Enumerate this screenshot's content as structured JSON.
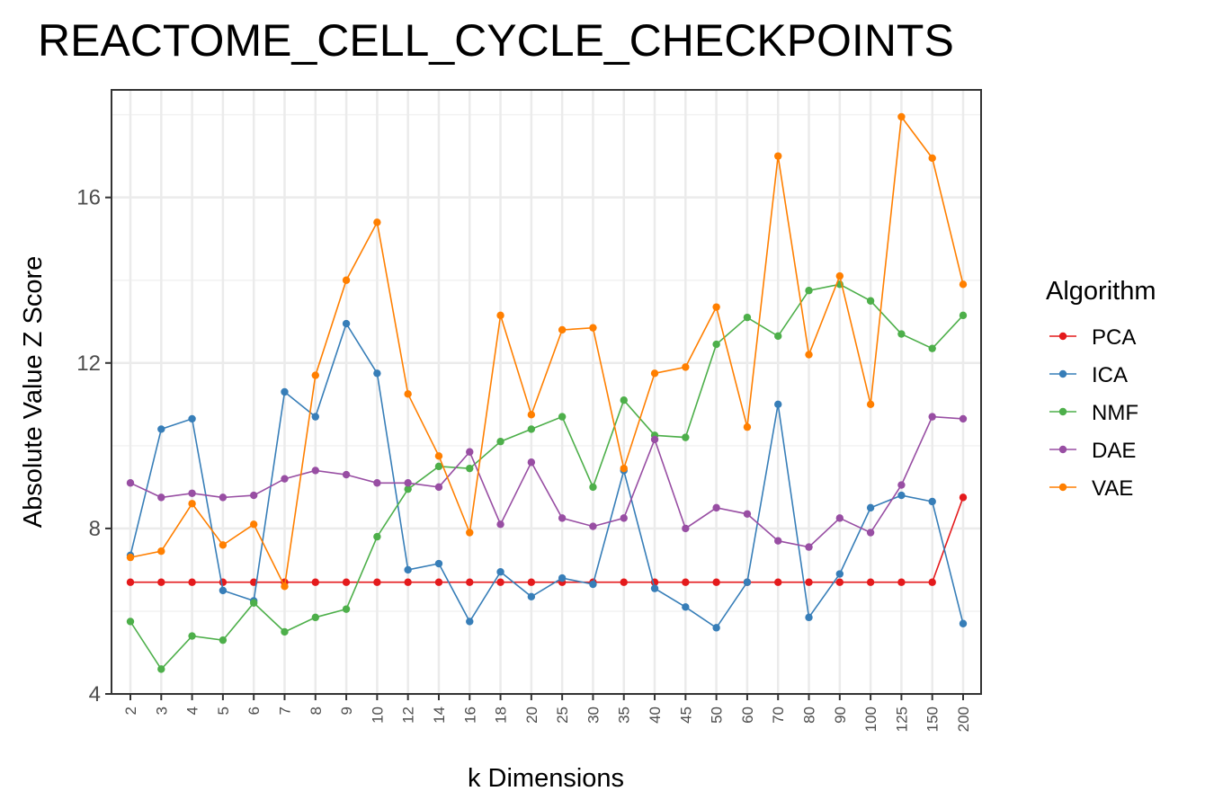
{
  "chart_data": {
    "type": "line",
    "title": "REACTOME_CELL_CYCLE_CHECKPOINTS",
    "xlabel": "k Dimensions",
    "ylabel": "Absolute Value Z Score",
    "categories": [
      "2",
      "3",
      "4",
      "5",
      "6",
      "7",
      "8",
      "9",
      "10",
      "12",
      "14",
      "16",
      "18",
      "20",
      "25",
      "30",
      "35",
      "40",
      "45",
      "50",
      "60",
      "70",
      "80",
      "90",
      "100",
      "125",
      "150",
      "200"
    ],
    "ylim": [
      4,
      18.6
    ],
    "yticks": [
      4,
      8,
      12,
      16
    ],
    "ytick_labels": [
      "4",
      "8",
      "12",
      "16"
    ],
    "grid": true,
    "legend": {
      "title": "Algorithm",
      "position": "right"
    },
    "series": [
      {
        "name": "PCA",
        "color": "#E41A1C",
        "values": [
          6.7,
          6.7,
          6.7,
          6.7,
          6.7,
          6.7,
          6.7,
          6.7,
          6.7,
          6.7,
          6.7,
          6.7,
          6.7,
          6.7,
          6.7,
          6.7,
          6.7,
          6.7,
          6.7,
          6.7,
          6.7,
          6.7,
          6.7,
          6.7,
          6.7,
          6.7,
          6.7,
          8.75
        ]
      },
      {
        "name": "ICA",
        "color": "#377EB8",
        "values": [
          7.35,
          10.4,
          10.65,
          6.5,
          6.25,
          11.3,
          10.7,
          12.95,
          11.75,
          7.0,
          7.15,
          5.75,
          6.95,
          6.35,
          6.8,
          6.65,
          9.4,
          6.55,
          6.1,
          5.6,
          6.7,
          11.0,
          5.85,
          6.9,
          8.5,
          8.8,
          8.65,
          5.7
        ]
      },
      {
        "name": "NMF",
        "color": "#4DAF4A",
        "values": [
          5.75,
          4.6,
          5.4,
          5.3,
          6.2,
          5.5,
          5.85,
          6.05,
          7.8,
          8.95,
          9.5,
          9.45,
          10.1,
          10.4,
          10.7,
          9.0,
          11.1,
          10.25,
          10.2,
          12.45,
          13.1,
          12.65,
          13.75,
          13.9,
          13.5,
          12.7,
          12.35,
          13.15
        ]
      },
      {
        "name": "DAE",
        "color": "#984EA3",
        "values": [
          9.1,
          8.75,
          8.85,
          8.75,
          8.8,
          9.2,
          9.4,
          9.3,
          9.1,
          9.1,
          9.0,
          9.85,
          8.1,
          9.6,
          8.25,
          8.05,
          8.25,
          10.15,
          8.0,
          8.5,
          8.35,
          7.7,
          7.55,
          8.25,
          7.9,
          9.05,
          10.7,
          10.65
        ]
      },
      {
        "name": "VAE",
        "color": "#FF7F00",
        "values": [
          7.3,
          7.45,
          8.6,
          7.6,
          8.1,
          6.6,
          11.7,
          14.0,
          15.4,
          11.25,
          9.75,
          7.9,
          13.15,
          10.75,
          12.8,
          12.85,
          9.45,
          11.75,
          11.9,
          13.35,
          10.45,
          17.0,
          12.2,
          14.1,
          11.0,
          17.95,
          16.95,
          13.9
        ]
      }
    ]
  }
}
